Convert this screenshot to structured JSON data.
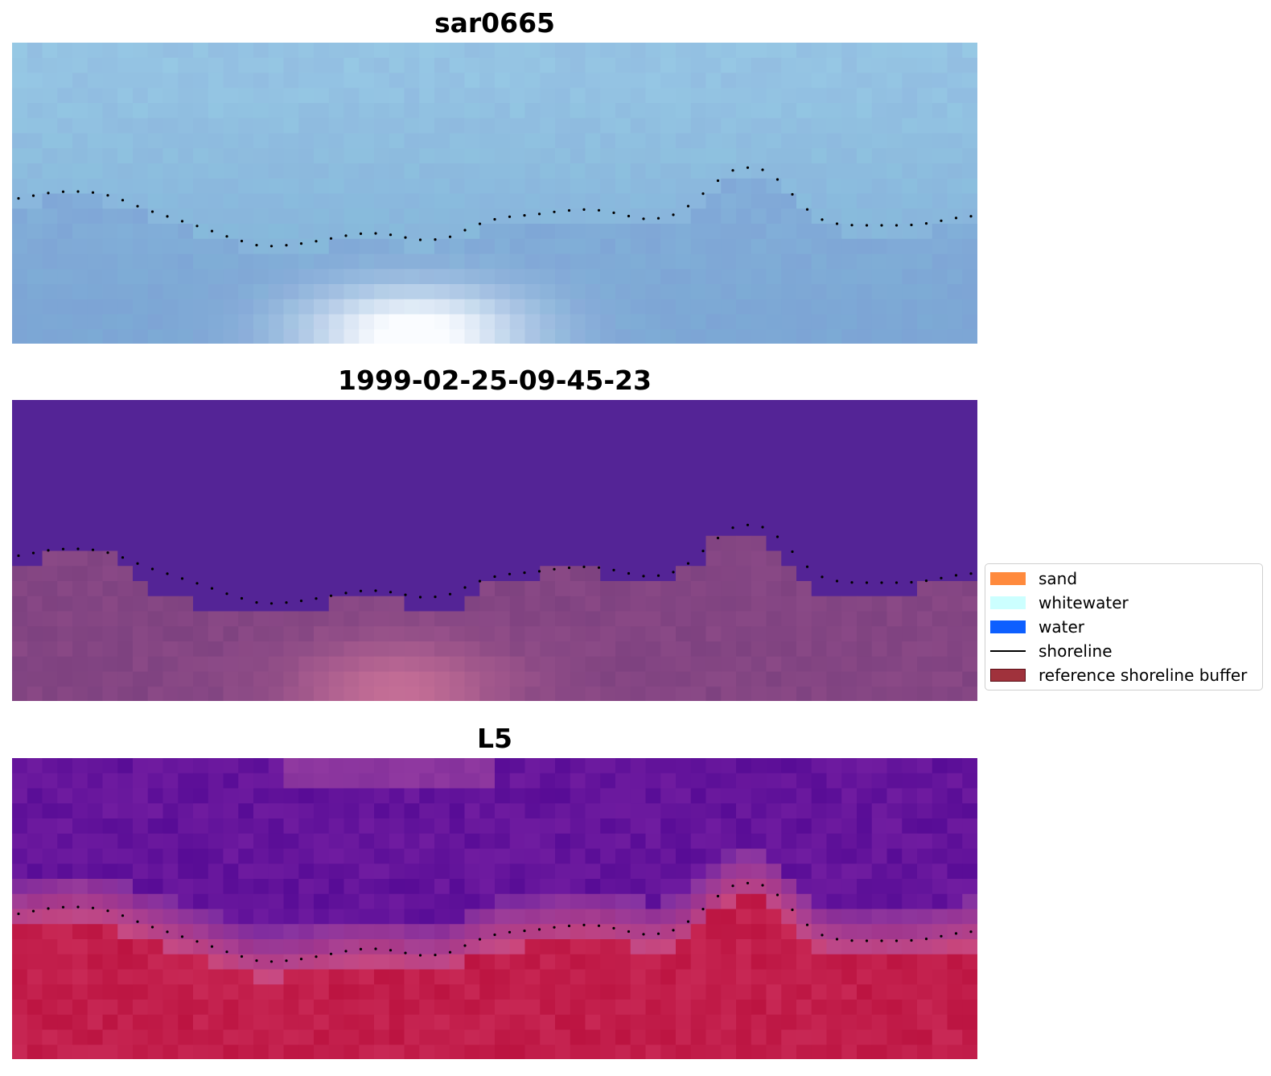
{
  "panels": [
    {
      "title": "sar0665",
      "style": "sar"
    },
    {
      "title": "1999-02-25-09-45-23",
      "style": "class"
    },
    {
      "title": "L5",
      "style": "index"
    }
  ],
  "shoreline_profile": [
    248,
    244,
    240,
    238,
    238,
    240,
    246,
    255,
    263,
    270,
    277,
    284,
    292,
    299,
    305,
    306,
    304,
    301,
    297,
    293,
    290,
    290,
    293,
    298,
    298,
    294,
    284,
    275,
    270,
    268,
    266,
    263,
    261,
    260,
    263,
    268,
    272,
    271,
    265,
    248,
    228,
    212,
    208,
    212,
    230,
    255,
    272,
    278,
    280,
    280,
    280,
    280,
    278,
    274,
    270,
    268
  ],
  "class_boundary": [
    200,
    200,
    181,
    181,
    181,
    181,
    200,
    218,
    236,
    236,
    236,
    255,
    255,
    255,
    255,
    255,
    255,
    255,
    255,
    236,
    236,
    236,
    236,
    236,
    255,
    255,
    255,
    236,
    218,
    218,
    218,
    218,
    200,
    200,
    200,
    218,
    218,
    218,
    218,
    218,
    200,
    200,
    163,
    163,
    163,
    181,
    200,
    218,
    236,
    236,
    236,
    236,
    236,
    236,
    218,
    218,
    218,
    218
  ],
  "legend": {
    "items": [
      {
        "label": "sand",
        "color": "#ff8a3d",
        "kind": "patch"
      },
      {
        "label": "whitewater",
        "color": "#ccffff",
        "kind": "patch"
      },
      {
        "label": "water",
        "color": "#0d5fff",
        "kind": "patch"
      },
      {
        "label": "shoreline",
        "color": "#000000",
        "kind": "line"
      },
      {
        "label": "reference shoreline buffer",
        "color": "#a0323c",
        "kind": "patch-border"
      }
    ]
  }
}
